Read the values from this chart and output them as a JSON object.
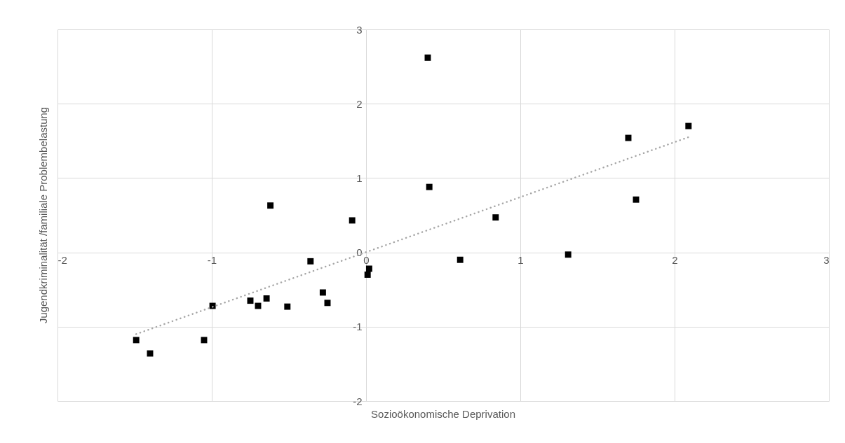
{
  "chart_data": {
    "type": "scatter",
    "xlabel": "Sozioökonomische Deprivation",
    "ylabel": "Jugendkriminalität /familiale Problembelastung",
    "xlim": [
      -2,
      3
    ],
    "ylim": [
      -2,
      3
    ],
    "xticks": [
      -2,
      -1,
      0,
      1,
      2,
      3
    ],
    "yticks": [
      -2,
      -1,
      0,
      1,
      2,
      3
    ],
    "grid": true,
    "series": [
      {
        "type": "scatter",
        "color": "#000000",
        "marker": "square",
        "x": [
          -1.49,
          -1.4,
          -1.05,
          -0.995,
          -0.75,
          -0.7,
          -0.645,
          -0.62,
          -0.51,
          -0.36,
          -0.28,
          -0.25,
          -0.09,
          0.02,
          0.01,
          0.4,
          0.41,
          0.61,
          0.84,
          1.31,
          1.7,
          1.75,
          2.09
        ],
        "values": [
          -1.18,
          -1.36,
          -1.18,
          -0.72,
          -0.65,
          -0.72,
          -0.62,
          0.63,
          -0.73,
          -0.12,
          -0.54,
          -0.68,
          0.43,
          -0.22,
          -0.3,
          2.62,
          0.88,
          -0.1,
          0.47,
          -0.03,
          1.54,
          0.71,
          1.7
        ]
      },
      {
        "type": "line",
        "color": "#a6a6a6",
        "line_style": "dotted",
        "marker": "none",
        "x": [
          -1.49,
          2.09
        ],
        "values": [
          -1.1,
          1.55
        ]
      }
    ]
  }
}
